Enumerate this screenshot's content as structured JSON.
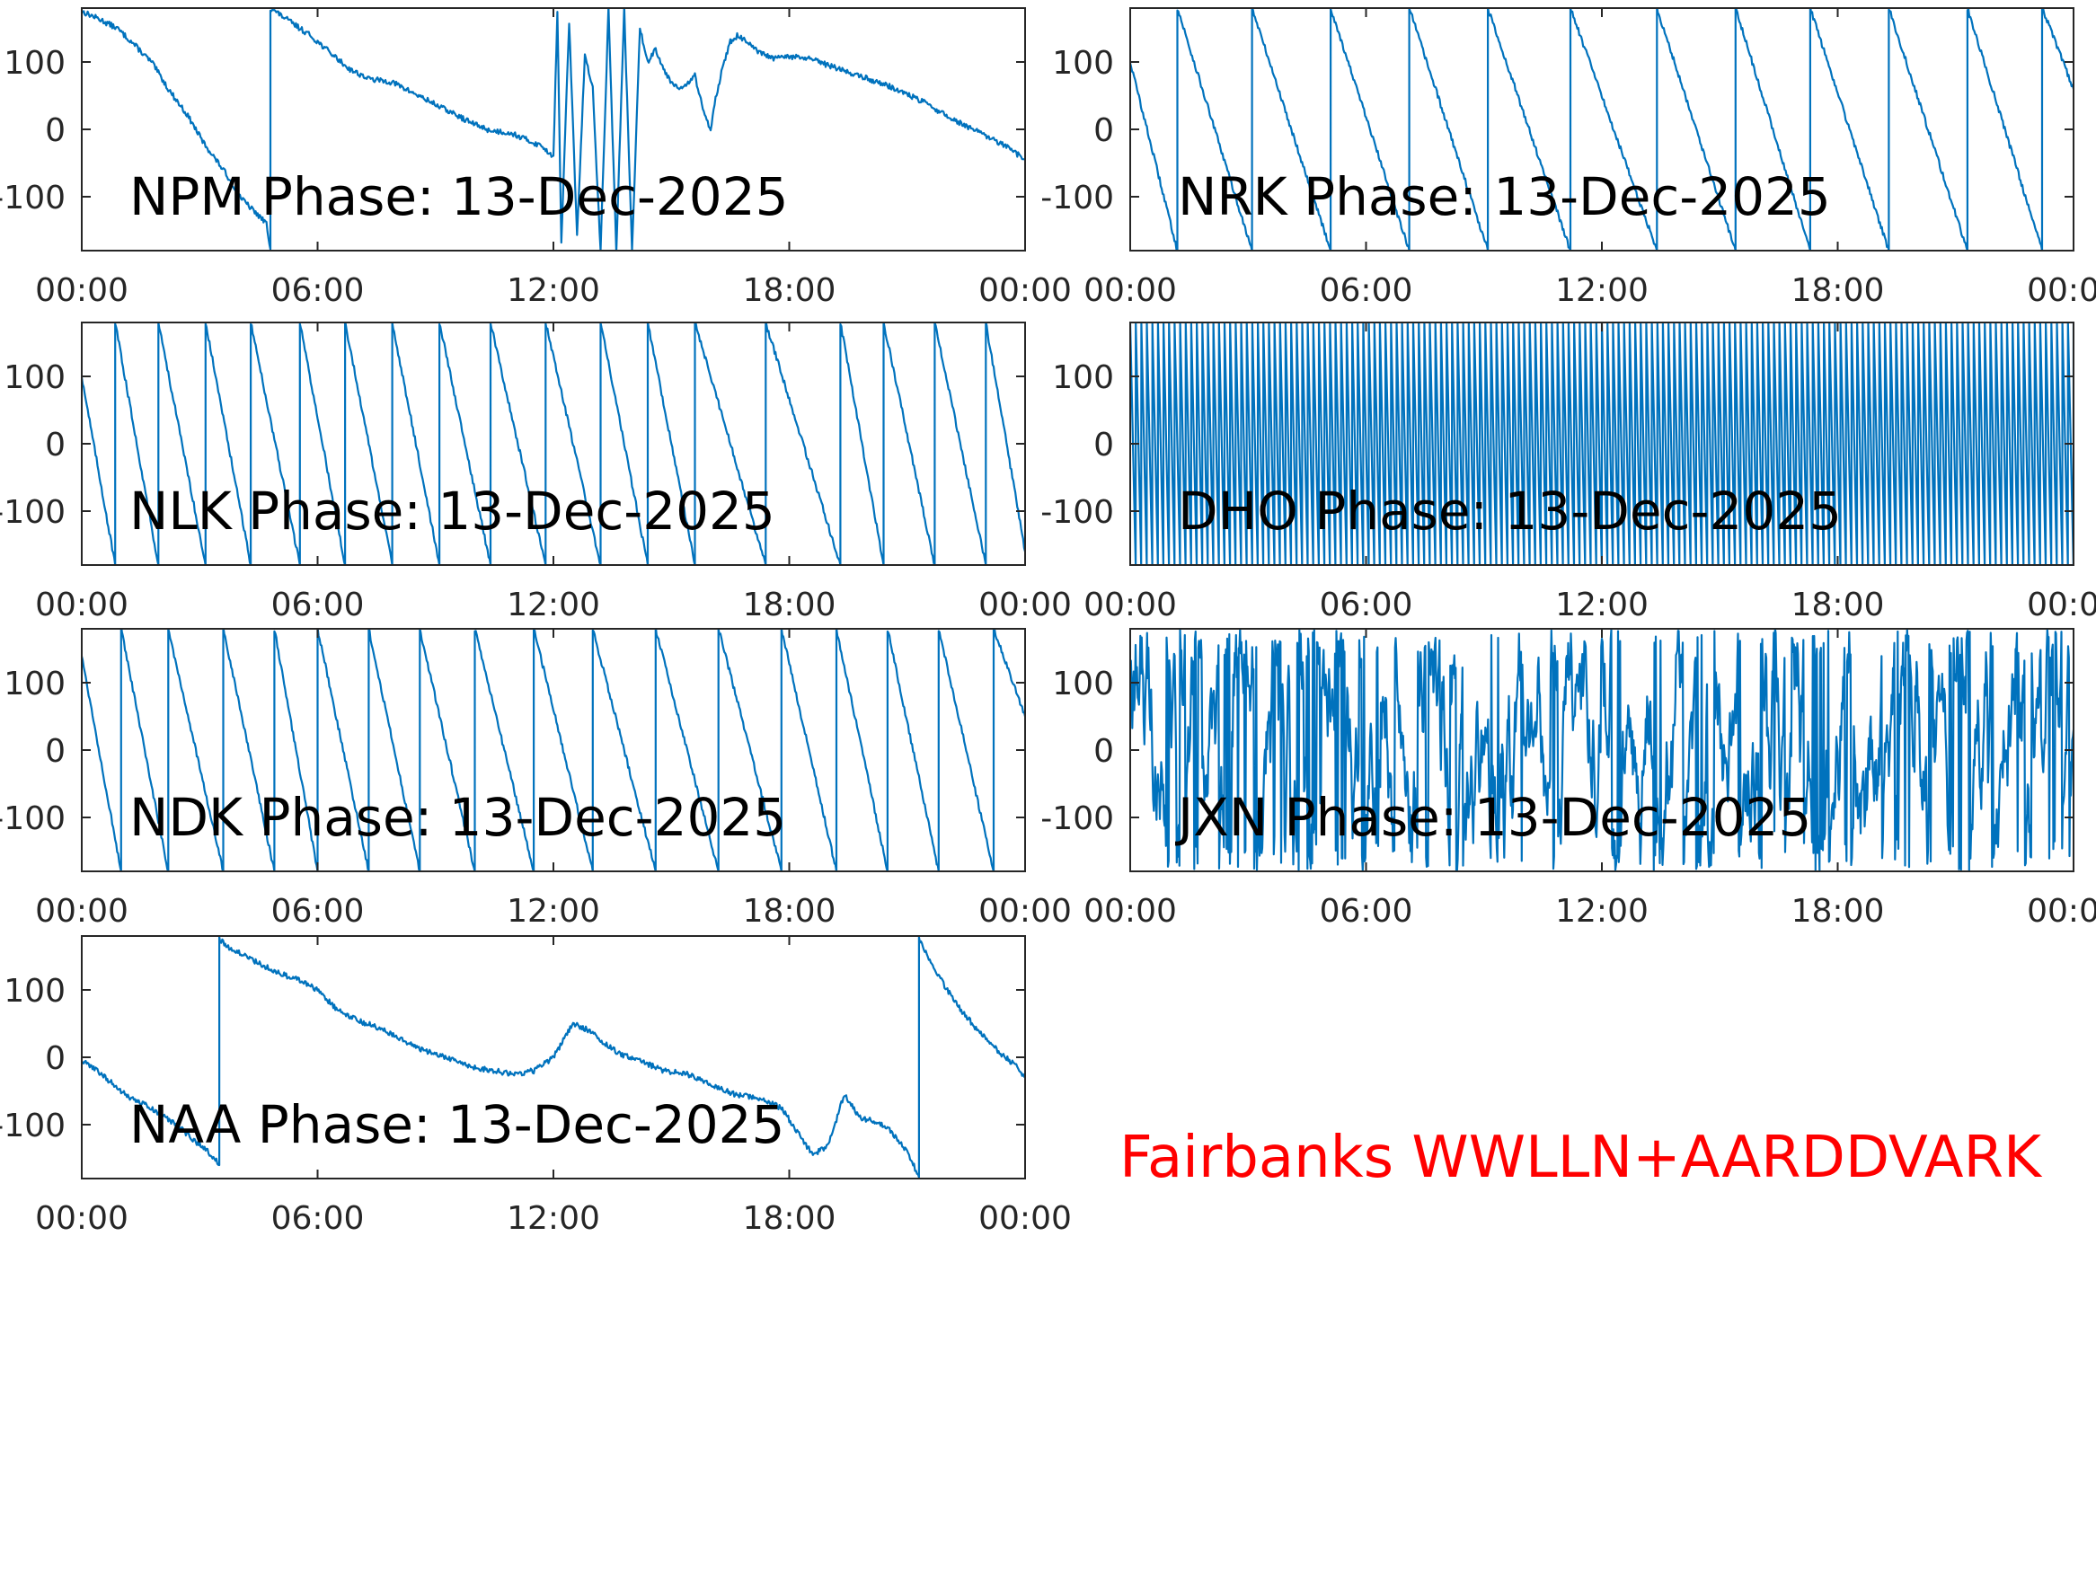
{
  "chart_data": [
    {
      "type": "line",
      "title": "NPM Phase: 13-Dec-2025",
      "x_ticks": [
        "00:00",
        "06:00",
        "12:00",
        "18:00",
        "00:00"
      ],
      "xlim_hours": [
        0,
        24
      ],
      "y_ticks": [
        100,
        0,
        -100
      ],
      "y_tick_labels": [
        "100",
        "0",
        "-100"
      ],
      "ylim": [
        -180,
        180
      ],
      "series": [
        {
          "color": "#0072BD",
          "x": [
            0.0,
            0.4,
            0.9,
            1.3,
            1.8,
            2.2,
            2.7,
            3.1,
            3.6,
            4.1,
            4.7,
            4.8,
            4.8,
            5.3,
            5.8,
            6.3,
            6.8,
            7.3,
            7.9,
            8.4,
            8.9,
            9.4,
            9.9,
            10.4,
            10.9,
            11.3,
            11.7,
            12.0,
            12.1,
            12.2,
            12.4,
            12.6,
            12.8,
            13.0,
            13.2,
            13.4,
            13.6,
            13.8,
            14.0,
            14.2,
            14.4,
            14.6,
            14.8,
            15.0,
            15.3,
            15.6,
            15.8,
            16.0,
            16.1,
            16.3,
            16.5,
            16.7,
            16.9,
            17.2,
            17.6,
            18.0,
            18.5,
            19.0,
            19.5,
            20.0,
            20.5,
            21.0,
            21.5,
            22.0,
            22.5,
            23.0,
            23.5,
            24.0
          ],
          "values": [
            175,
            165,
            150,
            128,
            98,
            60,
            20,
            -20,
            -60,
            -105,
            -140,
            -178,
            180,
            160,
            140,
            115,
            90,
            75,
            70,
            55,
            40,
            25,
            10,
            -2,
            -5,
            -15,
            -25,
            -40,
            175,
            -170,
            160,
            -160,
            110,
            60,
            -180,
            180,
            -180,
            180,
            -180,
            150,
            100,
            120,
            90,
            70,
            60,
            80,
            30,
            0,
            40,
            90,
            130,
            140,
            130,
            115,
            105,
            108,
            105,
            95,
            85,
            75,
            65,
            52,
            38,
            20,
            5,
            -10,
            -25,
            -45
          ]
        }
      ]
    },
    {
      "type": "line",
      "title": "NRK Phase: 13-Dec-2025",
      "x_ticks": [
        "00:00",
        "06:00",
        "12:00",
        "18:00",
        "00:00"
      ],
      "xlim_hours": [
        0,
        24
      ],
      "y_ticks": [
        100,
        0,
        -100
      ],
      "y_tick_labels": [
        "100",
        "0",
        "-100"
      ],
      "ylim": [
        -180,
        180
      ],
      "series": [
        {
          "color": "#0072BD",
          "x": [
            0.0,
            1.2,
            1.2,
            3.1,
            3.1,
            5.1,
            5.1,
            7.1,
            7.1,
            9.1,
            9.1,
            11.2,
            11.2,
            13.4,
            13.4,
            15.4,
            15.4,
            17.3,
            17.3,
            19.3,
            19.3,
            21.3,
            21.3,
            23.2,
            23.2,
            24.0
          ],
          "values": [
            100,
            -180,
            180,
            -180,
            180,
            -180,
            180,
            -180,
            180,
            -180,
            180,
            -180,
            180,
            -180,
            180,
            -180,
            180,
            -180,
            180,
            -180,
            180,
            -180,
            180,
            -180,
            180,
            60
          ]
        }
      ]
    },
    {
      "type": "line",
      "title": "NLK Phase: 13-Dec-2025",
      "x_ticks": [
        "00:00",
        "06:00",
        "12:00",
        "18:00",
        "00:00"
      ],
      "xlim_hours": [
        0,
        24
      ],
      "y_ticks": [
        100,
        0,
        -100
      ],
      "y_tick_labels": [
        "100",
        "0",
        "-100"
      ],
      "ylim": [
        -180,
        180
      ],
      "series": [
        {
          "color": "#0072BD",
          "x": [
            0.0,
            0.85,
            0.85,
            1.95,
            1.95,
            3.15,
            3.15,
            4.3,
            4.3,
            5.55,
            5.55,
            6.7,
            6.7,
            7.9,
            7.9,
            9.1,
            9.1,
            10.4,
            10.4,
            11.8,
            11.8,
            13.2,
            13.2,
            14.4,
            14.4,
            15.6,
            15.6,
            17.4,
            17.4,
            19.3,
            19.3,
            20.4,
            20.4,
            21.7,
            21.7,
            23.0,
            23.0,
            24.0
          ],
          "values": [
            100,
            -180,
            180,
            -180,
            180,
            -180,
            180,
            -180,
            180,
            -180,
            180,
            -180,
            180,
            -180,
            180,
            -180,
            180,
            -180,
            180,
            -180,
            180,
            -180,
            180,
            -180,
            180,
            -180,
            180,
            -180,
            180,
            -180,
            180,
            -180,
            180,
            -180,
            180,
            -180,
            180,
            -160
          ]
        }
      ]
    },
    {
      "type": "line",
      "title": "DHO Phase: 13-Dec-2025",
      "x_ticks": [
        "00:00",
        "06:00",
        "12:00",
        "18:00",
        "00:00"
      ],
      "xlim_hours": [
        0,
        24
      ],
      "y_ticks": [
        100,
        0,
        -100
      ],
      "y_tick_labels": [
        "100",
        "0",
        "-100"
      ],
      "ylim": [
        -180,
        180
      ],
      "series": [
        {
          "color": "#0072BD",
          "x": [
            0.0,
            24.0
          ],
          "values": [
            180,
            -180
          ]
        }
      ]
    },
    {
      "type": "line",
      "title": "NDK Phase: 13-Dec-2025",
      "x_ticks": [
        "00:00",
        "06:00",
        "12:00",
        "18:00",
        "00:00"
      ],
      "xlim_hours": [
        0,
        24
      ],
      "y_ticks": [
        100,
        0,
        -100
      ],
      "y_tick_labels": [
        "100",
        "0",
        "-100"
      ],
      "ylim": [
        -180,
        180
      ],
      "series": [
        {
          "color": "#0072BD",
          "x": [
            0.0,
            1.0,
            1.0,
            2.2,
            2.2,
            3.6,
            3.6,
            4.9,
            4.9,
            6.0,
            6.0,
            7.3,
            7.3,
            8.6,
            8.6,
            10.0,
            10.0,
            11.5,
            11.5,
            13.0,
            13.0,
            14.6,
            14.6,
            16.2,
            16.2,
            17.8,
            17.8,
            19.2,
            19.2,
            20.5,
            20.5,
            21.8,
            21.8,
            23.2,
            23.2,
            24.0
          ],
          "values": [
            140,
            -180,
            180,
            -180,
            180,
            -180,
            180,
            -180,
            180,
            -180,
            180,
            -180,
            180,
            -180,
            180,
            -180,
            180,
            -180,
            180,
            -180,
            180,
            -180,
            180,
            -180,
            180,
            -180,
            180,
            -180,
            180,
            -180,
            180,
            -180,
            180,
            -180,
            180,
            50
          ]
        }
      ]
    },
    {
      "type": "line",
      "title": "JXN Phase: 13-Dec-2025",
      "x_ticks": [
        "00:00",
        "06:00",
        "12:00",
        "18:00",
        "00:00"
      ],
      "xlim_hours": [
        0,
        24
      ],
      "y_ticks": [
        100,
        0,
        -100
      ],
      "y_tick_labels": [
        "100",
        "0",
        "-100"
      ],
      "ylim": [
        -180,
        180
      ],
      "series": [
        {
          "color": "#0072BD",
          "x": [
            0.0,
            24.0
          ],
          "values": [
            100,
            80
          ]
        }
      ]
    },
    {
      "type": "line",
      "title": "NAA Phase: 13-Dec-2025",
      "x_ticks": [
        "00:00",
        "06:00",
        "12:00",
        "18:00",
        "00:00"
      ],
      "xlim_hours": [
        0,
        24
      ],
      "y_ticks": [
        100,
        0,
        -100
      ],
      "y_tick_labels": [
        "100",
        "0",
        "-100"
      ],
      "ylim": [
        -180,
        180
      ],
      "series": [
        {
          "color": "#0072BD",
          "x": [
            0.0,
            0.4,
            0.8,
            1.2,
            1.6,
            2.0,
            2.4,
            2.8,
            3.2,
            3.4,
            3.5,
            3.5,
            3.7,
            4.0,
            4.5,
            5.0,
            5.5,
            6.0,
            6.5,
            7.0,
            7.5,
            8.0,
            8.5,
            9.0,
            9.5,
            10.0,
            10.5,
            11.0,
            11.5,
            12.0,
            12.5,
            12.9,
            13.3,
            13.7,
            14.2,
            14.8,
            15.4,
            16.0,
            16.6,
            17.2,
            17.8,
            18.2,
            18.6,
            19.0,
            19.4,
            19.8,
            20.2,
            20.6,
            21.0,
            21.2,
            21.3,
            21.3,
            21.8,
            22.3,
            22.8,
            23.3,
            23.8,
            24.0
          ],
          "values": [
            -5,
            -20,
            -40,
            -60,
            -70,
            -85,
            -100,
            -120,
            -140,
            -150,
            -160,
            175,
            165,
            155,
            140,
            125,
            115,
            100,
            70,
            55,
            45,
            30,
            15,
            5,
            -5,
            -15,
            -20,
            -25,
            -20,
            0,
            50,
            40,
            20,
            5,
            -5,
            -20,
            -25,
            -40,
            -55,
            -60,
            -75,
            -110,
            -145,
            -130,
            -55,
            -90,
            -95,
            -110,
            -140,
            -165,
            -178,
            175,
            120,
            75,
            40,
            10,
            -15,
            -30
          ]
        }
      ]
    }
  ],
  "footer": {
    "label": "Fairbanks WWLLN+AARDDVARK",
    "color": "#ff0000"
  }
}
